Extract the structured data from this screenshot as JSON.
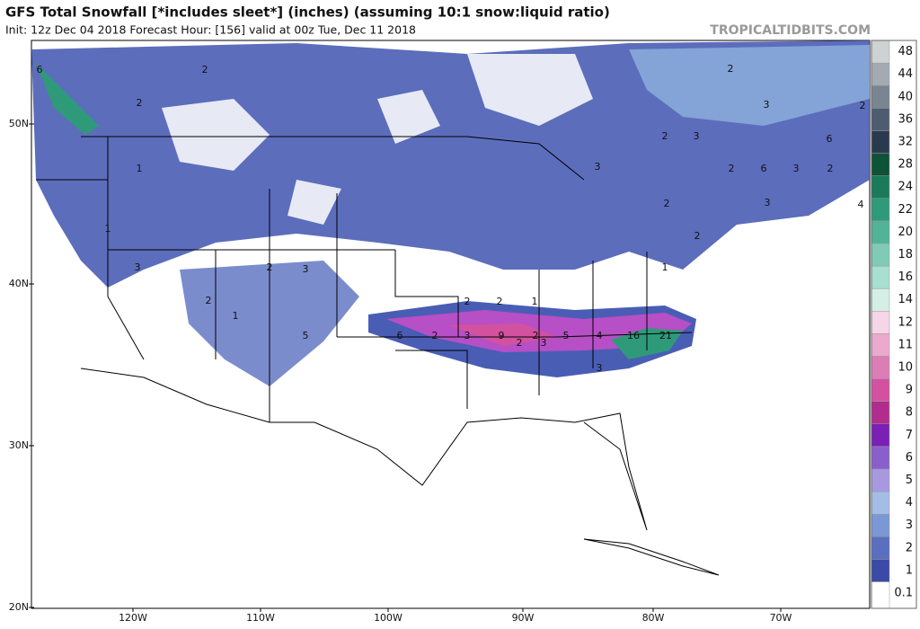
{
  "header": {
    "title": "GFS Total Snowfall [*includes sleet*] (inches) (assuming 10:1 snow:liquid ratio)",
    "subtitle": "Init: 12z Dec 04 2018   Forecast Hour: [156]   valid at 00z Tue, Dec 11 2018",
    "watermark": "TROPICALTIDBITS.COM"
  },
  "map": {
    "lat_labels": [
      "50N",
      "40N",
      "30N",
      "20N"
    ],
    "lon_labels": [
      "120W",
      "110W",
      "100W",
      "90W",
      "80W",
      "70W"
    ],
    "contour_labels": [
      6,
      2,
      2,
      1,
      1,
      3,
      2,
      2,
      3,
      1,
      5,
      6,
      2,
      3,
      9,
      2,
      5,
      4,
      16,
      21,
      2,
      3,
      2,
      2,
      1,
      1,
      3,
      3,
      2,
      2,
      3,
      2,
      3,
      2,
      6,
      2,
      3,
      2,
      3,
      2,
      4,
      6
    ]
  },
  "colorbar": {
    "levels": [
      0.1,
      1,
      2,
      3,
      4,
      5,
      6,
      7,
      8,
      9,
      10,
      11,
      12,
      14,
      16,
      18,
      20,
      22,
      24,
      28,
      32,
      36,
      40,
      44,
      48
    ],
    "colors": [
      "#ffffff",
      "#3b4aa6",
      "#5a6fc0",
      "#7b98d4",
      "#a4bde6",
      "#a898e0",
      "#8a5fcb",
      "#7a20b5",
      "#b02d8d",
      "#d2529f",
      "#dc7db6",
      "#eaa9cd",
      "#f5d5e6",
      "#d5efe7",
      "#a8dfcf",
      "#7fcbb5",
      "#52b397",
      "#2f9a79",
      "#1a7a5a",
      "#0e5238",
      "#2a3a4e",
      "#4d5c70",
      "#7a8592",
      "#a3aab2",
      "#cfd2d2"
    ]
  }
}
